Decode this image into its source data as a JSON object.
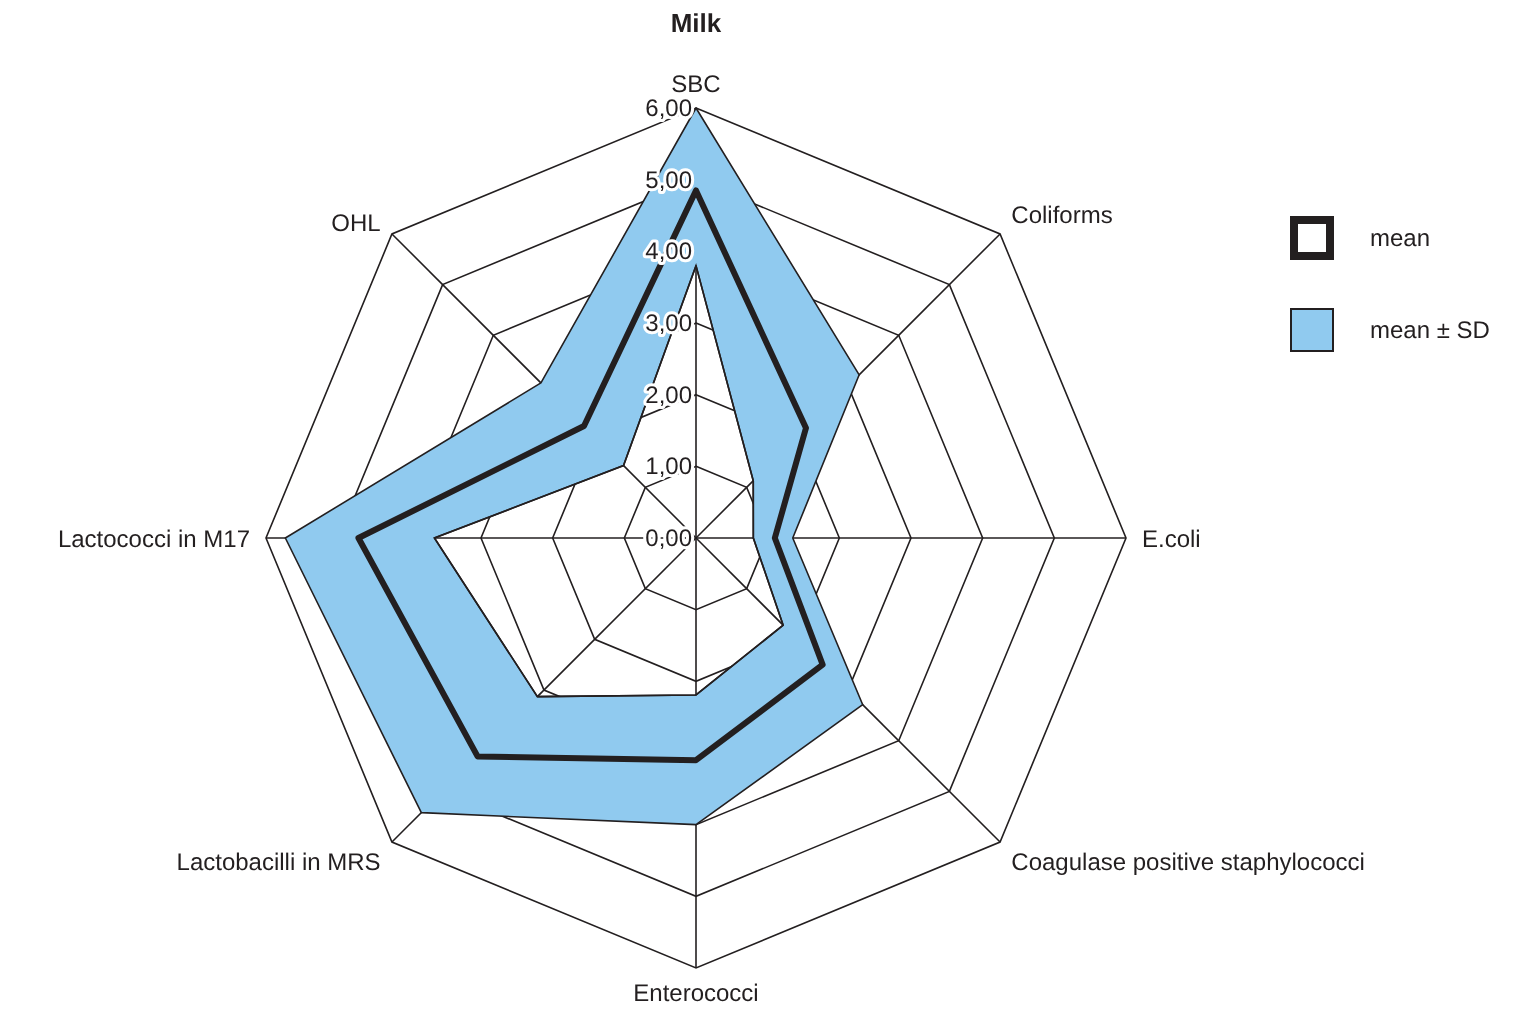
{
  "chart_data": {
    "type": "radar",
    "title": "Milk",
    "categories": [
      "SBC",
      "Coliforms",
      "E.coli",
      "Coagulase positive staphylococci",
      "Enterococci",
      "Lactobacilli in MRS",
      "Lactococci in M17",
      "OHL"
    ],
    "series": [
      {
        "name": "mean",
        "color": "#231f20",
        "values": [
          4.85,
          2.17,
          1.1,
          2.5,
          3.1,
          4.31,
          4.71,
          2.21
        ]
      },
      {
        "name": "mean ± SD",
        "color": "#90caef",
        "values": [
          6.0,
          3.22,
          1.35,
          3.29,
          4.0,
          5.42,
          5.73,
          3.06
        ]
      },
      {
        "color": "#231f20",
        "values": [
          3.8,
          1.13,
          0.8,
          1.72,
          2.19,
          3.13,
          3.65,
          1.43
        ]
      }
    ],
    "ylim": [
      0,
      6
    ],
    "yticks": [
      {
        "value": 0,
        "label": "0,00"
      },
      {
        "value": 1,
        "label": "1,00"
      },
      {
        "value": 2,
        "label": "2,00"
      },
      {
        "value": 3,
        "label": "3,00"
      },
      {
        "value": 4,
        "label": "4,00"
      },
      {
        "value": 5,
        "label": "5,00"
      },
      {
        "value": 6,
        "label": "6,00"
      }
    ],
    "grid": true,
    "legend": "right"
  }
}
